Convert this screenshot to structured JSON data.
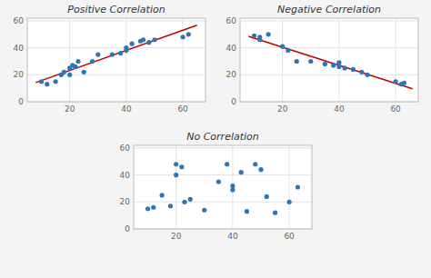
{
  "chart_data": [
    {
      "type": "scatter",
      "title": "Positive Correlation",
      "xlim": [
        5,
        68
      ],
      "ylim": [
        0,
        62
      ],
      "xticks": [
        20,
        40,
        60
      ],
      "yticks": [
        0,
        20,
        40,
        60
      ],
      "grid": true,
      "series": [
        {
          "type": "scatter",
          "color": "#2E75B6",
          "x": [
            10,
            12,
            15,
            17,
            18,
            20,
            20,
            21,
            22,
            23,
            25,
            28,
            30,
            35,
            38,
            40,
            40,
            42,
            45,
            46,
            48,
            50,
            60,
            62
          ],
          "values": [
            15,
            13,
            15,
            20,
            22,
            20,
            25,
            27,
            26,
            30,
            22,
            30,
            35,
            35,
            36,
            38,
            40,
            43,
            45,
            46,
            44,
            46,
            48,
            50
          ]
        },
        {
          "type": "line",
          "color": "#C00000",
          "x": [
            8,
            65
          ],
          "values": [
            14.24,
            56.79
          ]
        }
      ]
    },
    {
      "type": "scatter",
      "title": "Negative Correlation",
      "xlim": [
        5,
        68
      ],
      "ylim": [
        0,
        62
      ],
      "xticks": [
        20,
        40,
        60
      ],
      "yticks": [
        0,
        20,
        40,
        60
      ],
      "grid": true,
      "series": [
        {
          "type": "scatter",
          "color": "#2E75B6",
          "x": [
            10,
            12,
            12,
            15,
            20,
            22,
            25,
            30,
            35,
            38,
            40,
            40,
            42,
            45,
            48,
            50,
            60,
            62,
            63
          ],
          "values": [
            49,
            48,
            46,
            50,
            41,
            38,
            30,
            30,
            28,
            27,
            29,
            26,
            25,
            24,
            22,
            20,
            15,
            13,
            14
          ]
        },
        {
          "type": "line",
          "color": "#C00000",
          "x": [
            8,
            66
          ],
          "values": [
            48.56,
            9.56
          ]
        }
      ]
    },
    {
      "type": "scatter",
      "title": "No Correlation",
      "xlim": [
        5,
        68
      ],
      "ylim": [
        0,
        62
      ],
      "xticks": [
        20,
        40,
        60
      ],
      "yticks": [
        0,
        20,
        40,
        60
      ],
      "grid": true,
      "series": [
        {
          "type": "scatter",
          "color": "#2E75B6",
          "x": [
            10,
            12,
            15,
            18,
            20,
            20,
            22,
            23,
            25,
            30,
            35,
            38,
            40,
            40,
            43,
            45,
            48,
            50,
            52,
            55,
            60,
            63
          ],
          "values": [
            15,
            16,
            25,
            17,
            40,
            48,
            46,
            20,
            22,
            14,
            35,
            48,
            32,
            29,
            42,
            13,
            48,
            44,
            24,
            12,
            20,
            31
          ]
        }
      ]
    }
  ]
}
